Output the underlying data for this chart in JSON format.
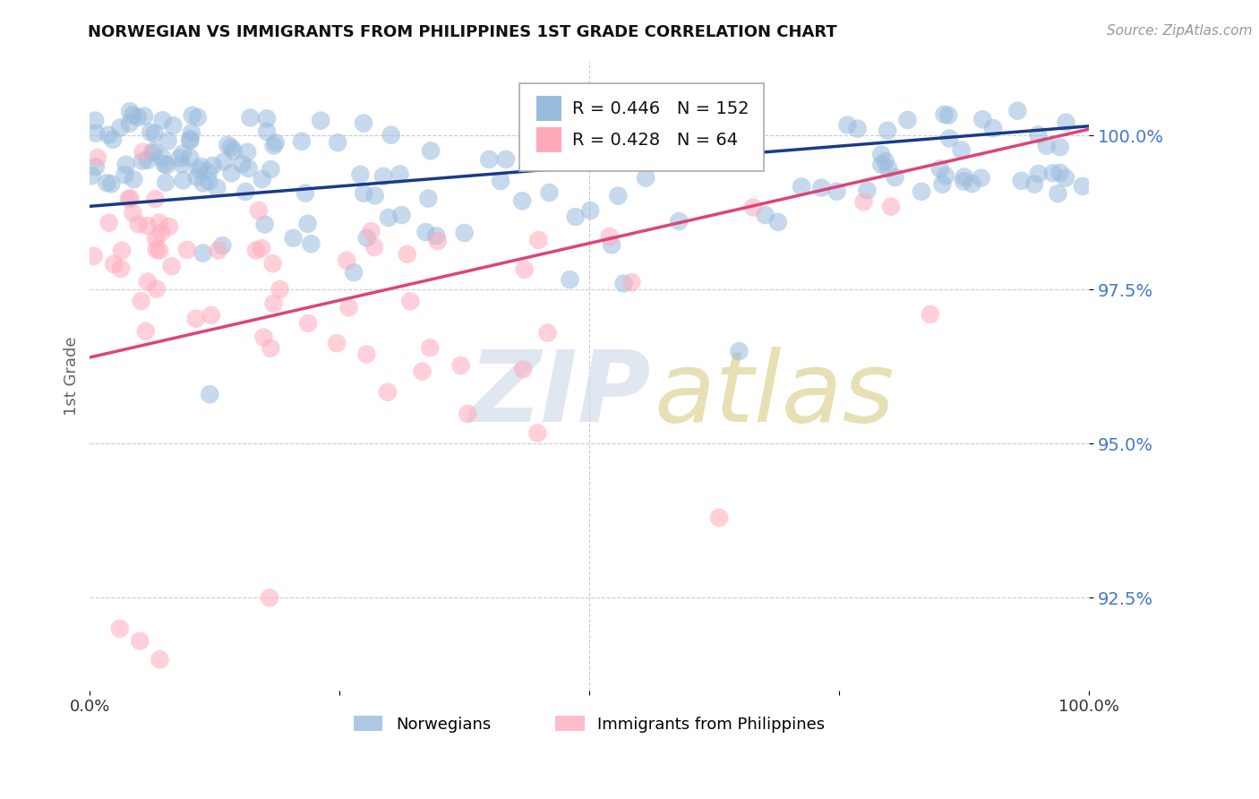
{
  "title": "NORWEGIAN VS IMMIGRANTS FROM PHILIPPINES 1ST GRADE CORRELATION CHART",
  "source": "Source: ZipAtlas.com",
  "ylabel": "1st Grade",
  "y_ticks": [
    92.5,
    95.0,
    97.5,
    100.0
  ],
  "y_tick_labels": [
    "92.5%",
    "95.0%",
    "97.5%",
    "100.0%"
  ],
  "x_range": [
    0.0,
    100.0
  ],
  "y_range": [
    91.0,
    101.2
  ],
  "legend_labels": [
    "Norwegians",
    "Immigrants from Philippines"
  ],
  "blue_R": 0.446,
  "blue_N": 152,
  "pink_R": 0.428,
  "pink_N": 64,
  "blue_color": "#99BBDD",
  "pink_color": "#FFAABB",
  "blue_line_color": "#1a3a8a",
  "pink_line_color": "#dd4477",
  "bg_color": "#ffffff",
  "grid_color": "#cccccc",
  "tick_label_color": "#4477cc",
  "blue_line_x0": 0,
  "blue_line_y0": 98.85,
  "blue_line_x1": 100,
  "blue_line_y1": 100.15,
  "pink_line_x0": 0,
  "pink_line_y0": 96.4,
  "pink_line_x1": 100,
  "pink_line_y1": 100.1
}
